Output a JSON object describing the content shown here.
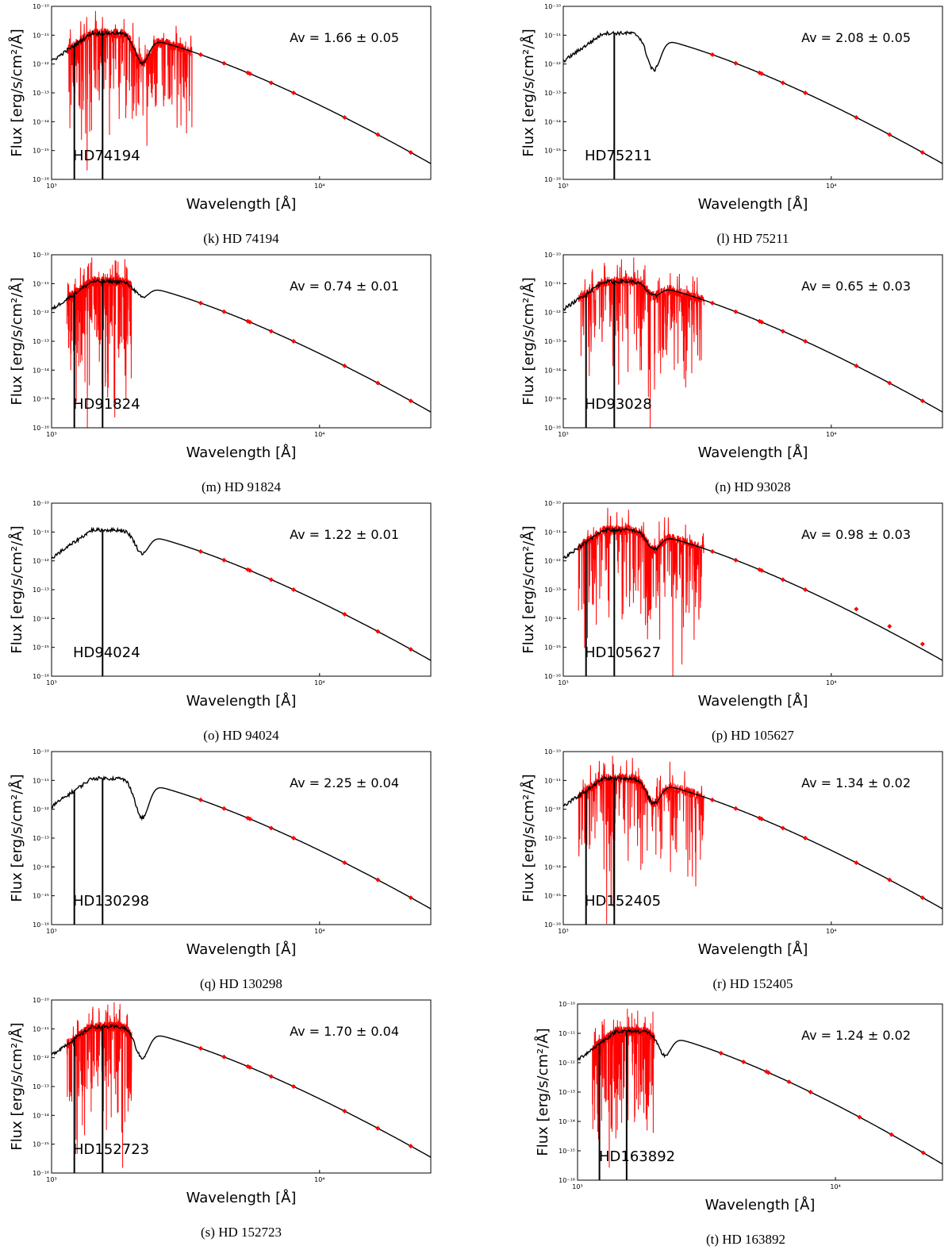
{
  "figure": {
    "xlabel": "Wavelength [Å]",
    "ylabel": "Flux [erg/s/cm²/Å]",
    "x_ticks": [
      "10³",
      "10⁴"
    ],
    "y_ticks": [
      "10⁻¹⁰",
      "10⁻¹¹",
      "10⁻¹²",
      "10⁻¹³",
      "10⁻¹⁴",
      "10⁻¹⁵",
      "10⁻¹⁶"
    ],
    "colors": {
      "model": "#000000",
      "spectrum": "#ff0000",
      "photometry": "#ff0000"
    }
  },
  "chart_data": [
    {
      "type": "line",
      "star": "HD74194",
      "caption": "(k) HD 74194",
      "av_label": "Av = 1.66 ± 0.05",
      "av": 1.66,
      "av_err": 0.05,
      "xlim": [
        1000,
        26000
      ],
      "ylim": [
        1e-16,
        1e-10
      ],
      "xscale": "log",
      "yscale": "log",
      "uv_spectrum": true,
      "uv_range": [
        1140,
        3350
      ],
      "photometry_wavelengths": [
        3600,
        4400,
        5400,
        5500,
        6600,
        8000,
        12400,
        16500,
        21900
      ]
    },
    {
      "type": "line",
      "star": "HD75211",
      "caption": "(l) HD 75211",
      "av_label": "Av = 2.08 ± 0.05",
      "av": 2.08,
      "av_err": 0.05,
      "xlim": [
        1000,
        26000
      ],
      "ylim": [
        1e-16,
        1e-10
      ],
      "xscale": "log",
      "yscale": "log",
      "uv_spectrum": false,
      "photometry_wavelengths": [
        3600,
        4400,
        5400,
        5500,
        6600,
        8000,
        12400,
        16500,
        21900
      ]
    },
    {
      "type": "line",
      "star": "HD91824",
      "caption": "(m) HD 91824",
      "av_label": "Av = 0.74 ± 0.01",
      "av": 0.74,
      "av_err": 0.01,
      "xlim": [
        1000,
        26000
      ],
      "ylim": [
        1e-16,
        1e-10
      ],
      "xscale": "log",
      "yscale": "log",
      "uv_spectrum": true,
      "uv_range": [
        1140,
        1990
      ],
      "photometry_wavelengths": [
        3600,
        4400,
        5400,
        5500,
        6600,
        8000,
        12400,
        16500,
        21900
      ]
    },
    {
      "type": "line",
      "star": "HD93028",
      "caption": "(n) HD 93028",
      "av_label": "Av = 0.65 ± 0.03",
      "av": 0.65,
      "av_err": 0.03,
      "xlim": [
        1000,
        26000
      ],
      "ylim": [
        1e-16,
        1e-10
      ],
      "xscale": "log",
      "yscale": "log",
      "uv_spectrum": true,
      "uv_range": [
        1140,
        3350
      ],
      "photometry_wavelengths": [
        3600,
        4400,
        5400,
        5500,
        6600,
        8000,
        12400,
        16500,
        21900
      ]
    },
    {
      "type": "line",
      "star": "HD94024",
      "caption": "(o) HD 94024",
      "av_label": "Av = 1.22 ± 0.01",
      "av": 1.22,
      "av_err": 0.01,
      "xlim": [
        1000,
        26000
      ],
      "ylim": [
        1e-16,
        1e-10
      ],
      "xscale": "log",
      "yscale": "log",
      "uv_spectrum": false,
      "photometry_wavelengths": [
        3600,
        4400,
        5400,
        5500,
        6600,
        8000,
        12400,
        16500,
        21900
      ]
    },
    {
      "type": "line",
      "star": "HD105627",
      "caption": "(p) HD 105627",
      "av_label": "Av = 0.98 ± 0.03",
      "av": 0.98,
      "av_err": 0.03,
      "xlim": [
        1000,
        26000
      ],
      "ylim": [
        1e-16,
        1e-10
      ],
      "xscale": "log",
      "yscale": "log",
      "uv_spectrum": true,
      "uv_range": [
        1140,
        3350
      ],
      "photometry_wavelengths": [
        3600,
        4400,
        5400,
        5500,
        6600,
        8000,
        12400,
        16500,
        21900
      ]
    },
    {
      "type": "line",
      "star": "HD130298",
      "caption": "(q) HD 130298",
      "av_label": "Av = 2.25 ± 0.04",
      "av": 2.25,
      "av_err": 0.04,
      "xlim": [
        1000,
        26000
      ],
      "ylim": [
        1e-16,
        1e-10
      ],
      "xscale": "log",
      "yscale": "log",
      "uv_spectrum": false,
      "photometry_wavelengths": [
        3600,
        4400,
        5400,
        5500,
        6600,
        8000,
        12400,
        16500,
        21900
      ]
    },
    {
      "type": "line",
      "star": "HD152405",
      "caption": "(r) HD 152405",
      "av_label": "Av = 1.34 ± 0.02",
      "av": 1.34,
      "av_err": 0.02,
      "xlim": [
        1000,
        26000
      ],
      "ylim": [
        1e-16,
        1e-10
      ],
      "xscale": "log",
      "yscale": "log",
      "uv_spectrum": true,
      "uv_range": [
        1140,
        3350
      ],
      "photometry_wavelengths": [
        3600,
        4400,
        5400,
        5500,
        6600,
        8000,
        12400,
        16500,
        21900
      ]
    },
    {
      "type": "line",
      "star": "HD152723",
      "caption": "(s) HD 152723",
      "av_label": "Av = 1.70 ± 0.04",
      "av": 1.7,
      "av_err": 0.04,
      "xlim": [
        1000,
        26000
      ],
      "ylim": [
        1e-16,
        1e-10
      ],
      "xscale": "log",
      "yscale": "log",
      "uv_spectrum": true,
      "uv_range": [
        1140,
        1990
      ],
      "photometry_wavelengths": [
        3600,
        4400,
        5400,
        5500,
        6600,
        8000,
        12400,
        16500,
        21900
      ]
    },
    {
      "type": "line",
      "star": "HD163892",
      "caption": "(t) HD 163892",
      "av_label": "Av = 1.24 ± 0.02",
      "av": 1.24,
      "av_err": 0.02,
      "xlim": [
        1000,
        26000
      ],
      "ylim": [
        1e-16,
        1e-10
      ],
      "xscale": "log",
      "yscale": "log",
      "uv_spectrum": true,
      "uv_range": [
        1140,
        1990
      ],
      "photometry_wavelengths": [
        3600,
        4400,
        5400,
        5500,
        6600,
        8000,
        12400,
        16500,
        21900
      ]
    }
  ]
}
